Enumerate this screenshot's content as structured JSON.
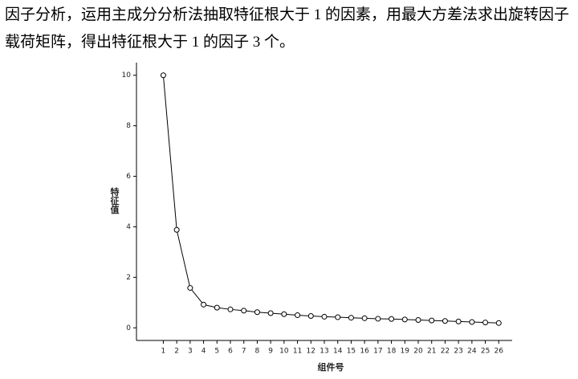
{
  "paragraph": "因子分析，运用主成分分析法抽取特征根大于 1 的因素，用最大方差法求出旋转因子载荷矩阵，得出特征根大于 1 的因子 3 个。",
  "chart_data": {
    "type": "line",
    "x": [
      1,
      2,
      3,
      4,
      5,
      6,
      7,
      8,
      9,
      10,
      11,
      12,
      13,
      14,
      15,
      16,
      17,
      18,
      19,
      20,
      21,
      22,
      23,
      24,
      25,
      26
    ],
    "values": [
      10.0,
      3.88,
      1.58,
      0.92,
      0.8,
      0.73,
      0.68,
      0.62,
      0.58,
      0.54,
      0.5,
      0.47,
      0.44,
      0.42,
      0.4,
      0.38,
      0.36,
      0.35,
      0.33,
      0.31,
      0.29,
      0.27,
      0.25,
      0.23,
      0.21,
      0.19
    ],
    "color": "#000000",
    "xlim": [
      -1,
      27
    ],
    "xticks": [
      1,
      2,
      3,
      4,
      5,
      6,
      7,
      8,
      9,
      10,
      11,
      12,
      13,
      14,
      15,
      16,
      17,
      18,
      19,
      20,
      21,
      22,
      23,
      24,
      25,
      26
    ],
    "ylim": [
      -0.5,
      10.5
    ],
    "yticks": [
      0,
      2,
      4,
      6,
      8,
      10
    ],
    "xlabel": "组件号",
    "ylabel": "特征值"
  }
}
